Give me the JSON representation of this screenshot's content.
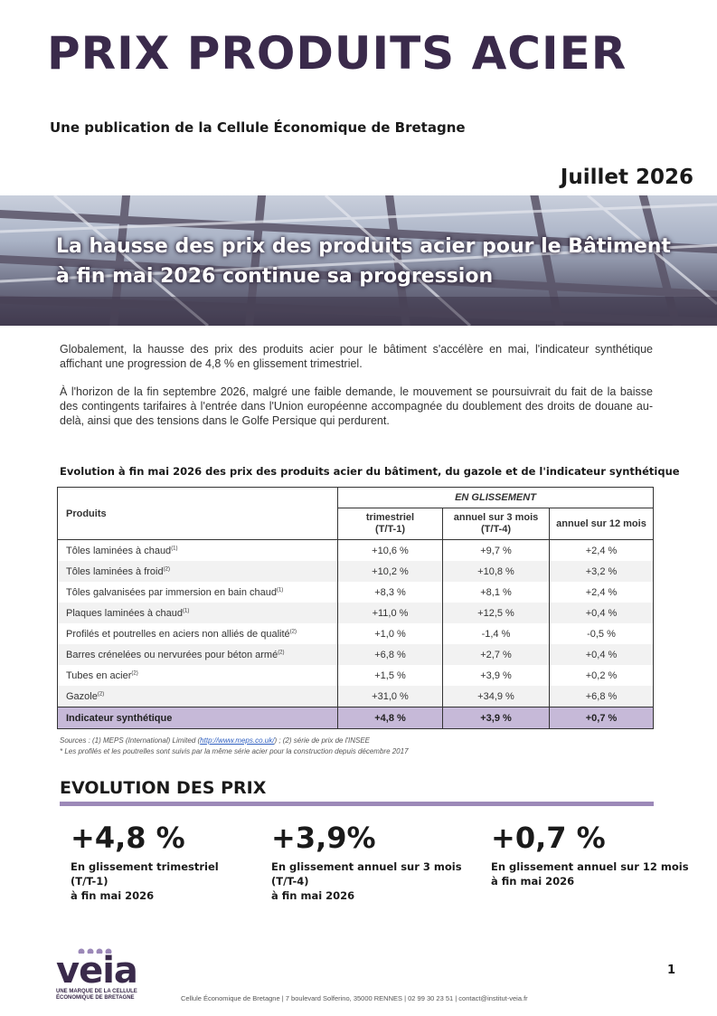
{
  "header": {
    "title": "PRIX PRODUITS ACIER",
    "subtitle": "Une publication de la Cellule Économique de Bretagne",
    "date": "Juillet 2026"
  },
  "banner": {
    "headline_line1": "La hausse des prix des produits acier pour le Bâtiment",
    "headline_line2": "à fin mai 2026 continue sa progression"
  },
  "intro": {
    "p1": "Globalement, la hausse des prix des produits acier pour le bâtiment s'accélère en mai, l'indicateur synthétique affichant une progression de 4,8 % en glissement trimestriel.",
    "p2": "À l'horizon de la fin septembre 2026, malgré une faible demande, le mouvement se poursuivrait du fait de la baisse des contingents tarifaires à l'entrée dans l'Union européenne accompagnée du doublement des droits de douane au-delà, ainsi que des tensions dans le Golfe Persique qui perdurent."
  },
  "table": {
    "title": "Evolution à fin mai 2026 des prix des produits acier du bâtiment, du gazole et de l'indicateur synthétique",
    "col_products": "Produits",
    "group_header": "EN GLISSEMENT",
    "col1_line1": "trimestriel",
    "col1_line2": "(T/T-1)",
    "col2_line1": "annuel sur 3 mois",
    "col2_line2": "(T/T-4)",
    "col3": "annuel sur 12 mois",
    "rows": [
      {
        "name": "Tôles laminées à chaud",
        "sup": "(1)",
        "t1": "+10,6 %",
        "t4": "+9,7 %",
        "y12": "+2,4 %"
      },
      {
        "name": "Tôles laminées à froid",
        "sup": "(2)",
        "t1": "+10,2 %",
        "t4": "+10,8 %",
        "y12": "+3,2 %"
      },
      {
        "name": "Tôles galvanisées par immersion en bain chaud",
        "sup": "(1)",
        "t1": "+8,3 %",
        "t4": "+8,1 %",
        "y12": "+2,4 %"
      },
      {
        "name": "Plaques laminées à chaud",
        "sup": "(1)",
        "t1": "+11,0 %",
        "t4": "+12,5 %",
        "y12": "+0,4 %"
      },
      {
        "name": "Profilés et poutrelles en aciers non alliés de qualité",
        "sup": "(2)",
        "t1": "+1,0 %",
        "t4": "-1,4 %",
        "y12": "-0,5 %"
      },
      {
        "name": "Barres crénelées ou nervurées pour béton armé",
        "sup": "(2)",
        "t1": "+6,8 %",
        "t4": "+2,7 %",
        "y12": "+0,4 %"
      },
      {
        "name": "Tubes en acier",
        "sup": "(2)",
        "t1": "+1,5 %",
        "t4": "+3,9 %",
        "y12": "+0,2 %"
      },
      {
        "name": "Gazole",
        "sup": "(2)",
        "t1": "+31,0 %",
        "t4": "+34,9 %",
        "y12": "+6,8 %"
      }
    ],
    "total": {
      "name": "Indicateur synthétique",
      "t1": "+4,8 %",
      "t4": "+3,9 %",
      "y12": "+0,7 %"
    },
    "source_prefix": "Sources : (1) MEPS (International) Limited (",
    "source_link": "http://www.meps.co.uk/",
    "source_suffix": ") ; (2) série de prix de l'INSEE",
    "note": "* Les profilés et les poutrelles sont suivis par la même série acier pour la construction depuis décembre 2017"
  },
  "evolution": {
    "title": "EVOLUTION DES PRIX",
    "kpis": [
      {
        "value": "+4,8 %",
        "line1": "En glissement trimestriel",
        "line2": "(T/T-1)",
        "line3": "à fin mai 2026"
      },
      {
        "value": "+3,9%",
        "line1": "En glissement annuel sur 3 mois",
        "line2": "(T/T-4)",
        "line3": "à fin mai 2026"
      },
      {
        "value": "+0,7 %",
        "line1": "En glissement annuel sur 12 mois",
        "line2": "à fin mai 2026",
        "line3": ""
      }
    ]
  },
  "footer": {
    "logo_word": "veia",
    "logo_tag_line1": "UNE MARQUE DE LA CELLULE",
    "logo_tag_line2": "ÉCONOMIQUE DE BRETAGNE",
    "address": "Cellule Économique de Bretagne | 7 boulevard Solferino, 35000 RENNES | 02 99 30 23 51 | contact@institut-veia.fr",
    "page_number": "1"
  },
  "colors": {
    "brand": "#3a2a4b",
    "accent": "#9c89b8",
    "total_row": "#c6b9d8"
  }
}
